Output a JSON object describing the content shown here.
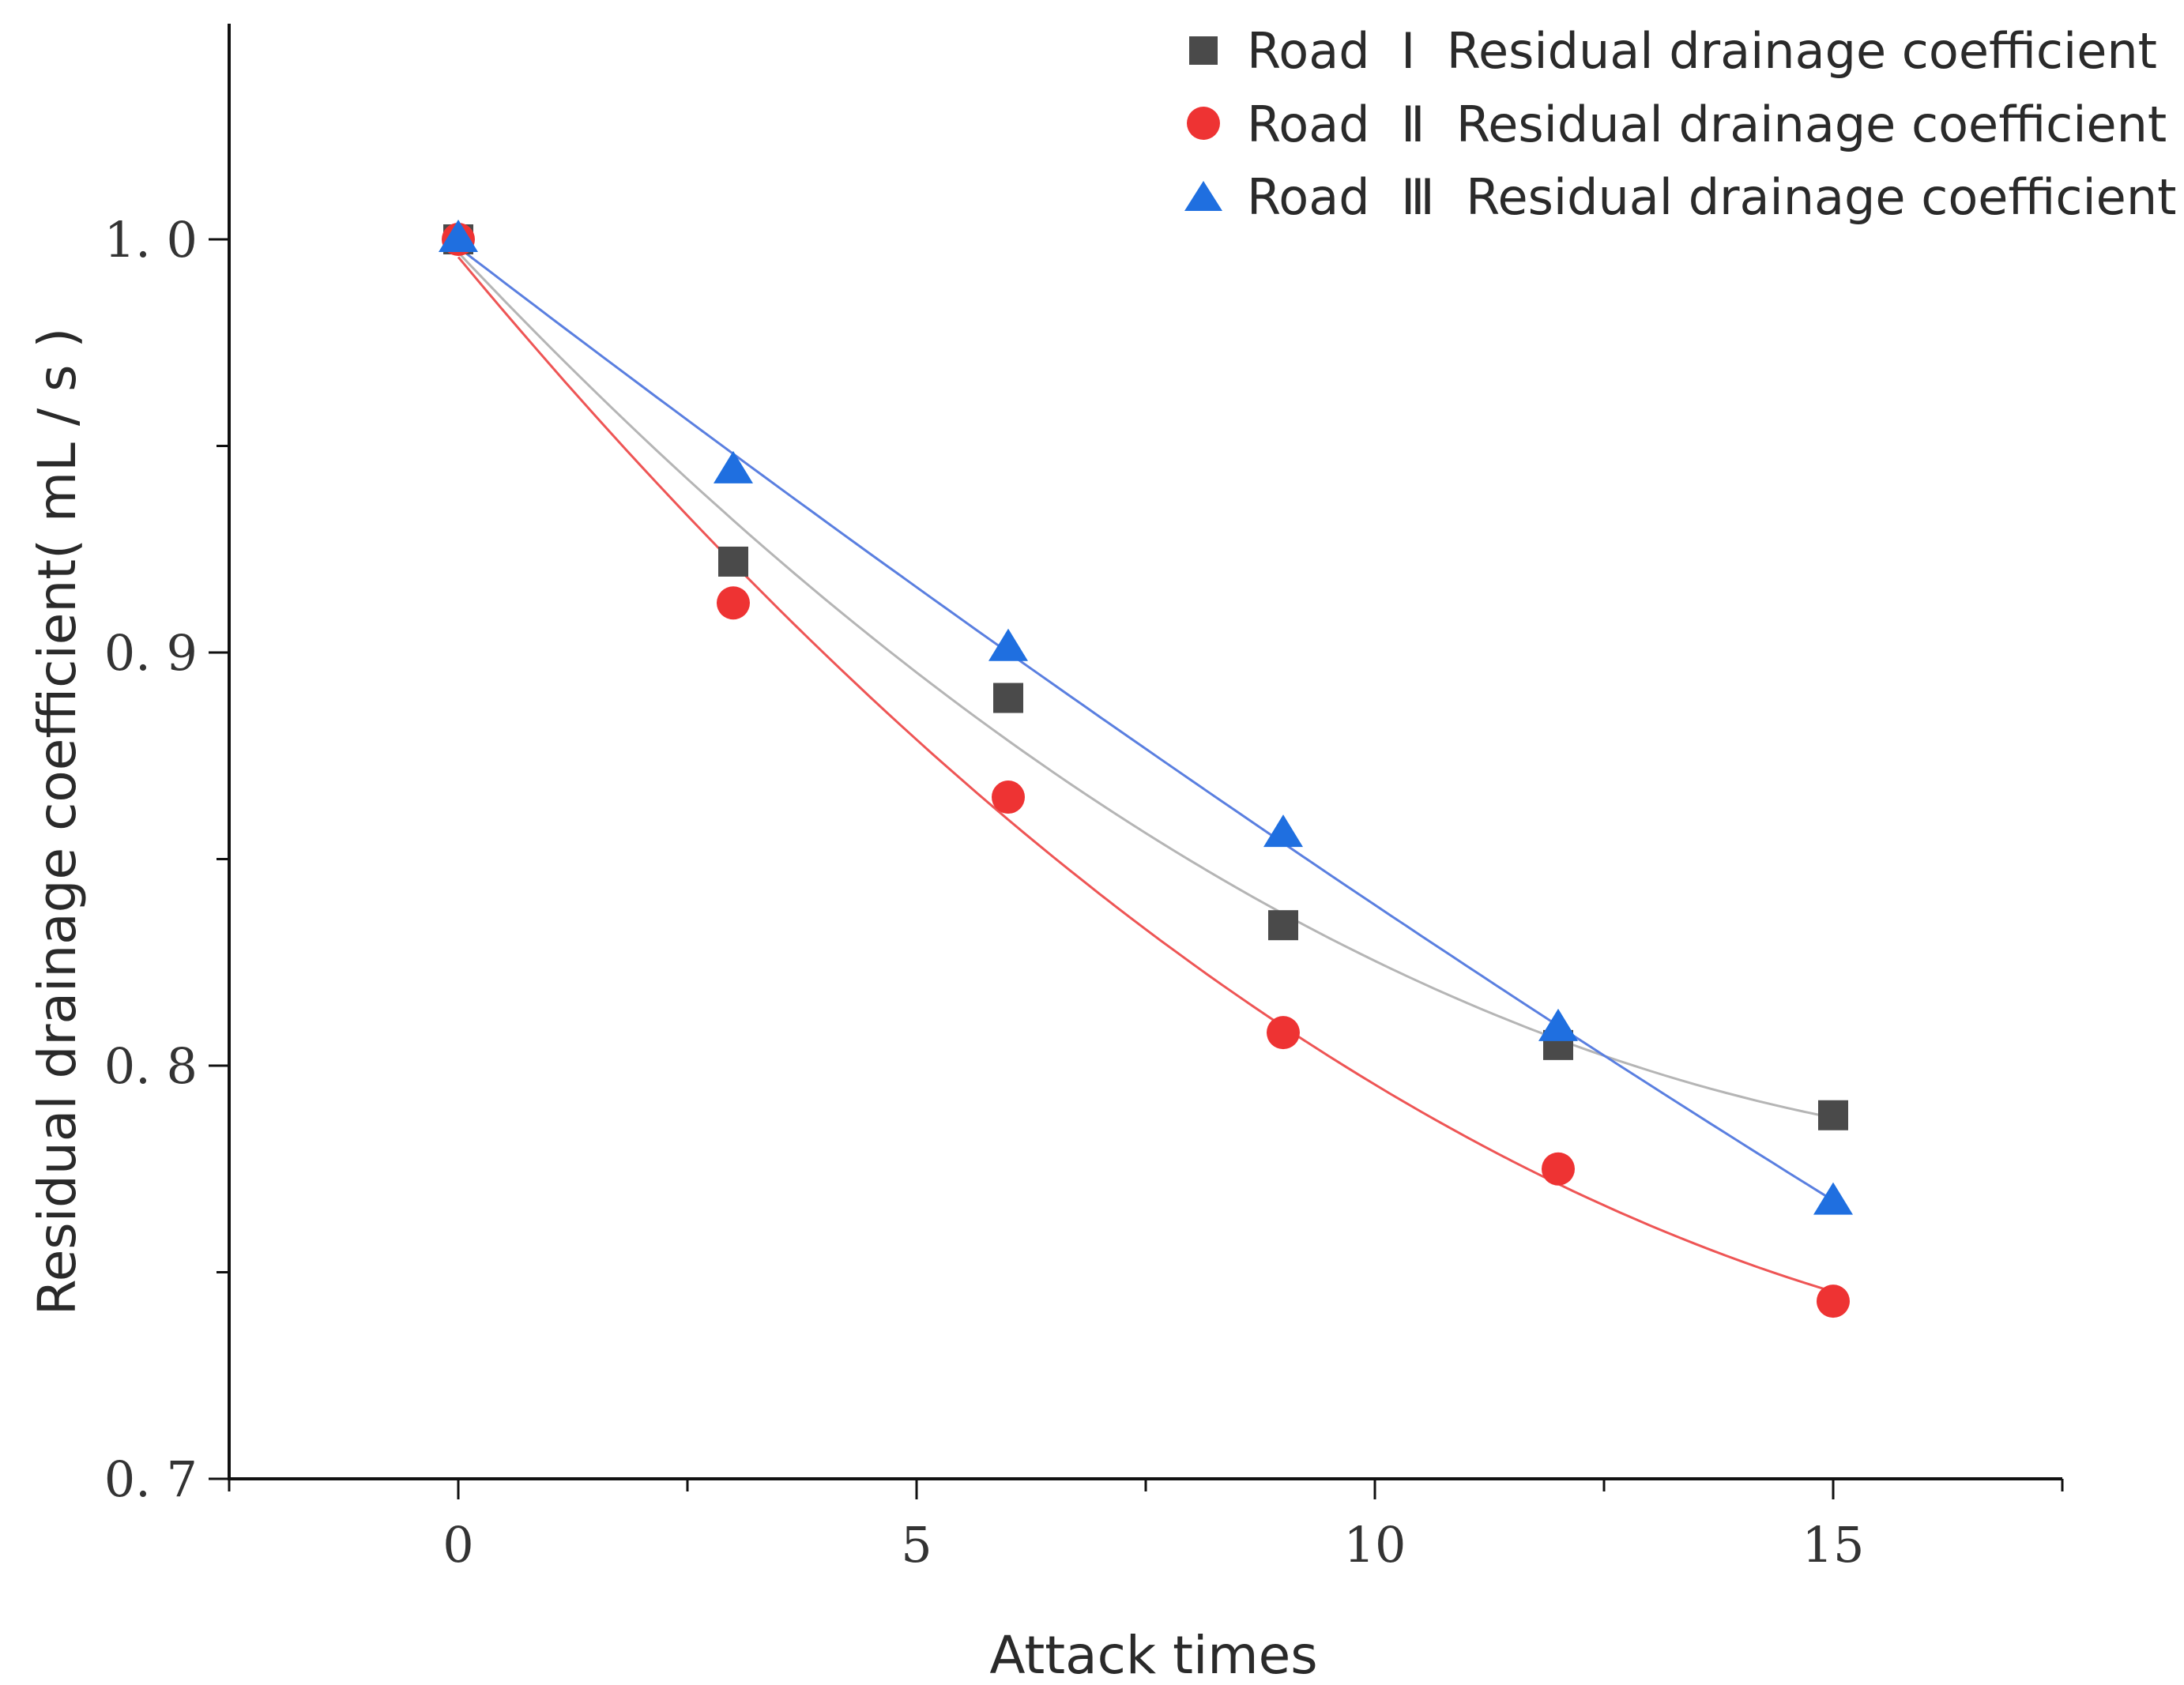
{
  "chart_data": {
    "type": "scatter",
    "title": "",
    "xlabel": "Attack times",
    "ylabel": "Residual drainage coefficient( mL / s )",
    "xlim": [
      -2.5,
      17.5
    ],
    "ylim": [
      0.7,
      1.04
    ],
    "x_major_ticks": [
      0,
      5,
      10,
      15
    ],
    "x_minor_ticks": [
      -2.5,
      2.5,
      7.5,
      12.5,
      17.5
    ],
    "x_tick_labels": [
      "0",
      "5",
      "10",
      "15"
    ],
    "y_major_ticks": [
      0.7,
      0.8,
      0.9,
      1.0
    ],
    "y_minor_ticks": [
      0.75,
      0.85,
      0.95
    ],
    "y_tick_labels": [
      "0. 7",
      "0. 8",
      "0. 9",
      "1. 0"
    ],
    "grid": false,
    "legend_position": "top-right",
    "x": [
      0,
      3,
      6,
      9,
      12,
      15
    ],
    "series": [
      {
        "name": "Road  Ⅰ  Residual drainage coefficient",
        "marker": "square",
        "color": "#4a4a4a",
        "fit_color": "#b5b5b5",
        "values": [
          1.0,
          0.922,
          0.889,
          0.834,
          0.805,
          0.788
        ]
      },
      {
        "name": "Road  Ⅱ  Residual drainage coefficient",
        "marker": "circle",
        "color": "#ee3333",
        "fit_color": "#ee5555",
        "values": [
          1.0,
          0.912,
          0.865,
          0.808,
          0.775,
          0.743
        ]
      },
      {
        "name": "Road  Ⅲ  Residual drainage coefficient",
        "marker": "triangle",
        "color": "#1f6fe0",
        "fit_color": "#5a7fe0",
        "values": [
          1.0,
          0.944,
          0.901,
          0.856,
          0.809,
          0.767
        ]
      }
    ]
  }
}
